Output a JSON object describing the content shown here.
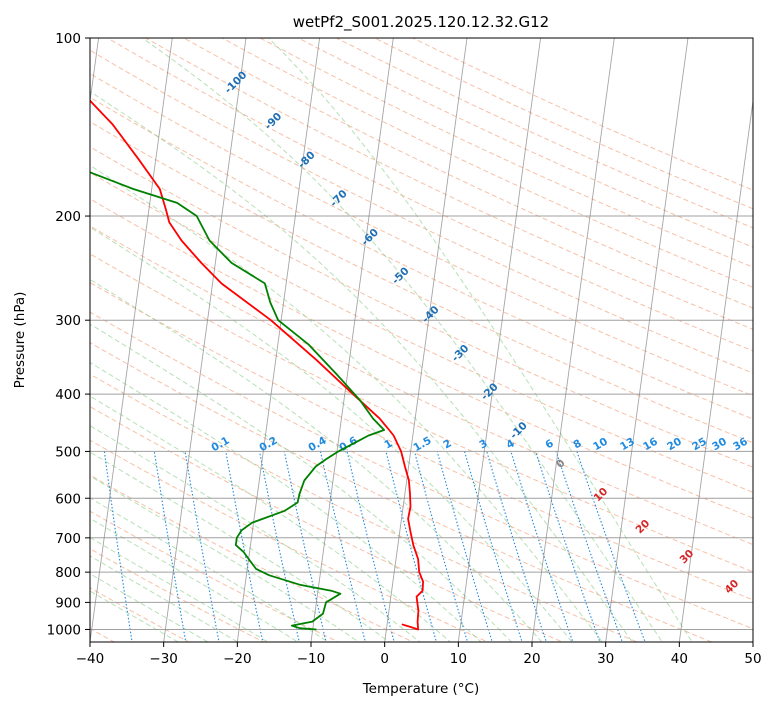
{
  "chart_data": {
    "type": "skew-t",
    "title": "wetPf2_S001.2025.120.12.32.G12",
    "xlabel": "Temperature (°C)",
    "ylabel": "Pressure (hPa)",
    "xlim": [
      -40,
      50
    ],
    "ylim": [
      1050,
      100
    ],
    "y_scale": "log",
    "grid": true,
    "x_ticks": [
      -40,
      -30,
      -20,
      -10,
      0,
      10,
      20,
      30,
      40,
      50
    ],
    "x_tick_labels": [
      "−40",
      "−30",
      "−20",
      "−10",
      "0",
      "10",
      "20",
      "30",
      "40",
      "50"
    ],
    "y_ticks": [
      1000,
      900,
      800,
      700,
      600,
      500,
      400,
      300,
      200,
      100
    ],
    "y_tick_labels": [
      "1000",
      "900",
      "800",
      "700",
      "600",
      "500",
      "400",
      "300",
      "200",
      "100"
    ],
    "series": [
      {
        "kind": "temperature",
        "color": "#ff0000",
        "points": [
          [
            980,
            2.0
          ],
          [
            990,
            3.2
          ],
          [
            1000,
            4.3
          ],
          [
            970,
            4.1
          ],
          [
            930,
            4.0
          ],
          [
            900,
            3.7
          ],
          [
            880,
            3.5
          ],
          [
            860,
            4.2
          ],
          [
            830,
            4.1
          ],
          [
            800,
            3.4
          ],
          [
            760,
            3.0
          ],
          [
            720,
            2.1
          ],
          [
            680,
            1.4
          ],
          [
            650,
            0.9
          ],
          [
            620,
            1.0
          ],
          [
            590,
            0.7
          ],
          [
            560,
            0.3
          ],
          [
            530,
            -0.5
          ],
          [
            500,
            -1.3
          ],
          [
            470,
            -2.6
          ],
          [
            460,
            -3.3
          ],
          [
            440,
            -4.8
          ],
          [
            400,
            -8.9
          ],
          [
            350,
            -14.5
          ],
          [
            300,
            -21.4
          ],
          [
            260,
            -28.8
          ],
          [
            240,
            -31.9
          ],
          [
            220,
            -35.0
          ],
          [
            205,
            -37.0
          ],
          [
            195,
            -37.7
          ],
          [
            180,
            -38.9
          ],
          [
            160,
            -42.4
          ],
          [
            140,
            -46.5
          ],
          [
            125,
            -50.8
          ],
          [
            110,
            -55.7
          ],
          [
            100,
            -59.5
          ]
        ]
      },
      {
        "kind": "dewpoint",
        "color": "#008000",
        "points": [
          [
            1000,
            -9.5
          ],
          [
            995,
            -11.8
          ],
          [
            985,
            -12.9
          ],
          [
            970,
            -10.2
          ],
          [
            940,
            -8.9
          ],
          [
            900,
            -8.7
          ],
          [
            870,
            -6.9
          ],
          [
            860,
            -8.2
          ],
          [
            840,
            -12.6
          ],
          [
            810,
            -16.9
          ],
          [
            790,
            -18.8
          ],
          [
            765,
            -19.8
          ],
          [
            740,
            -20.8
          ],
          [
            720,
            -22.0
          ],
          [
            700,
            -22.0
          ],
          [
            680,
            -21.5
          ],
          [
            660,
            -20.2
          ],
          [
            630,
            -16.0
          ],
          [
            610,
            -14.4
          ],
          [
            590,
            -14.3
          ],
          [
            560,
            -13.9
          ],
          [
            530,
            -12.6
          ],
          [
            515,
            -11.3
          ],
          [
            500,
            -9.8
          ],
          [
            480,
            -7.3
          ],
          [
            470,
            -6.0
          ],
          [
            460,
            -4.0
          ],
          [
            440,
            -5.7
          ],
          [
            410,
            -7.8
          ],
          [
            370,
            -11.5
          ],
          [
            330,
            -15.8
          ],
          [
            300,
            -20.4
          ],
          [
            280,
            -21.8
          ],
          [
            260,
            -22.9
          ],
          [
            240,
            -27.8
          ],
          [
            220,
            -31.2
          ],
          [
            200,
            -33.4
          ],
          [
            190,
            -36.3
          ],
          [
            180,
            -42.5
          ],
          [
            165,
            -50.8
          ],
          [
            150,
            -58.5
          ],
          [
            125,
            -67.3
          ],
          [
            110,
            -74.0
          ],
          [
            100,
            -79.8
          ]
        ]
      }
    ],
    "dry_adiabat_labels": [
      "0",
      "10",
      "20",
      "30",
      "40"
    ],
    "moist_adiabat_labels": [
      "-100",
      "-90",
      "-80",
      "-70",
      "-60",
      "-50",
      "-40",
      "-30",
      "-20",
      "-10"
    ],
    "mixing_ratio_labels": [
      "0.1",
      "0.2",
      "0.4",
      "0.6",
      "1",
      "1.5",
      "2",
      "3",
      "4",
      "6",
      "8",
      "10",
      "13",
      "16",
      "20",
      "25",
      "30",
      "36"
    ],
    "mixing_ratio_values": [
      0.1,
      0.2,
      0.4,
      0.6,
      1,
      1.5,
      2,
      3,
      4,
      6,
      8,
      10,
      13,
      16,
      20,
      25,
      30,
      36
    ],
    "colors": {
      "temperature": "#ff0000",
      "dewpoint": "#008000",
      "isotherm": "#808080",
      "isobar": "#a0a0a0",
      "dry_adiabat": "#f4a582",
      "moist_adiabat": "#91cf91",
      "mixing_ratio": "#1f8ae0",
      "moist_label": "#1f6fb5",
      "dry_label": "#d62728"
    }
  }
}
